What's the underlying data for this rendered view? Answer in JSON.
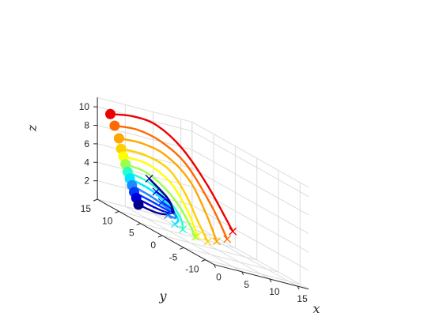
{
  "chart_data": {
    "type": "line3d",
    "title": "",
    "xlabel": "x",
    "ylabel": "y",
    "zlabel": "z",
    "xlim": [
      0,
      17
    ],
    "ylim": [
      -12,
      15
    ],
    "zlim": [
      0,
      11
    ],
    "xticks": [
      "0",
      "5",
      "10",
      "15"
    ],
    "yticks": [
      "-10",
      "-5",
      "0",
      "5",
      "10",
      "15"
    ],
    "zticks": [
      "2",
      "4",
      "6",
      "8",
      "10"
    ],
    "grid": true,
    "start_marker": "filled circle",
    "end_marker": "x",
    "series": [
      {
        "color": "#ee0000",
        "points": [
          [
            0,
            12,
            10
          ],
          [
            3,
            10.5,
            10.6
          ],
          [
            6,
            9,
            10.5
          ],
          [
            9,
            7,
            9
          ],
          [
            12,
            5,
            6
          ],
          [
            15,
            3,
            2
          ]
        ]
      },
      {
        "color": "#ff6a00",
        "points": [
          [
            0,
            11,
            9
          ],
          [
            3,
            9.6,
            9.4
          ],
          [
            6,
            8,
            9.0
          ],
          [
            9,
            6,
            7.5
          ],
          [
            12,
            4,
            4
          ],
          [
            14,
            3,
            1
          ]
        ]
      },
      {
        "color": "#ffa600",
        "points": [
          [
            0,
            10,
            7.9
          ],
          [
            3,
            8.6,
            8.2
          ],
          [
            6,
            7,
            7.8
          ],
          [
            9,
            5.3,
            6
          ],
          [
            11,
            4,
            3
          ],
          [
            12.5,
            3.5,
            0.4
          ]
        ]
      },
      {
        "color": "#ffd000",
        "points": [
          [
            0,
            9.5,
            6.9
          ],
          [
            3,
            8.1,
            7.1
          ],
          [
            6,
            6.4,
            6.5
          ],
          [
            8,
            5,
            4.5
          ],
          [
            9.5,
            4,
            2
          ],
          [
            10.5,
            3,
            0.2
          ]
        ]
      },
      {
        "color": "#ffff00",
        "points": [
          [
            0,
            9,
            6.2
          ],
          [
            3,
            7.5,
            6.3
          ],
          [
            5.5,
            5.8,
            5.4
          ],
          [
            7,
            4.5,
            3.8
          ],
          [
            8,
            3.5,
            2
          ],
          [
            8.5,
            2.8,
            0.5
          ]
        ]
      },
      {
        "color": "#9cff4a",
        "points": [
          [
            0,
            8.5,
            5.5
          ],
          [
            2.5,
            7,
            5.4
          ],
          [
            4.5,
            5.3,
            4.5
          ],
          [
            6,
            4,
            3.2
          ],
          [
            7,
            3,
            1.8
          ],
          [
            7.5,
            2,
            0.5
          ]
        ]
      },
      {
        "color": "#28ffc7",
        "points": [
          [
            0,
            8,
            4.8
          ],
          [
            2.5,
            6.5,
            4.5
          ],
          [
            4.5,
            5,
            3.6
          ],
          [
            5.8,
            4.2,
            2.5
          ],
          [
            6.3,
            3.6,
            1.6
          ],
          [
            6.2,
            3.2,
            0.8
          ]
        ]
      },
      {
        "color": "#00e7ff",
        "points": [
          [
            0,
            7.5,
            4.2
          ],
          [
            2.5,
            6.1,
            3.8
          ],
          [
            4.4,
            4.9,
            3
          ],
          [
            5.6,
            4.3,
            2.2
          ],
          [
            6,
            4,
            1.5
          ],
          [
            5.6,
            4.3,
            1
          ]
        ]
      },
      {
        "color": "#1e88ff",
        "points": [
          [
            0,
            7,
            3.6
          ],
          [
            2.5,
            5.8,
            3.1
          ],
          [
            4.5,
            4.9,
            2.5
          ],
          [
            5.8,
            4.6,
            2
          ],
          [
            6.1,
            4.8,
            1.6
          ],
          [
            5.2,
            5.4,
            1.6
          ]
        ]
      },
      {
        "color": "#0038ff",
        "points": [
          [
            0,
            6.5,
            3.0
          ],
          [
            2.5,
            5.5,
            2.6
          ],
          [
            4.7,
            5.0,
            2.2
          ],
          [
            6,
            5.1,
            2
          ],
          [
            6.2,
            5.6,
            2.3
          ],
          [
            5,
            6.5,
            2.7
          ]
        ]
      },
      {
        "color": "#0000d6",
        "points": [
          [
            0,
            6,
            2.5
          ],
          [
            2.6,
            5.3,
            2.1
          ],
          [
            5,
            5.2,
            1.9
          ],
          [
            6.3,
            5.6,
            2.1
          ],
          [
            6.4,
            6.5,
            2.8
          ],
          [
            5,
            7.8,
            3.5
          ]
        ]
      },
      {
        "color": "#00008f",
        "points": [
          [
            0,
            5.5,
            1.9
          ],
          [
            2.8,
            5.2,
            1.6
          ],
          [
            5.2,
            5.4,
            1.7
          ],
          [
            6.6,
            6.2,
            2.2
          ],
          [
            6.6,
            7.3,
            3.2
          ],
          [
            4.8,
            9.2,
            4.5
          ]
        ]
      }
    ]
  }
}
